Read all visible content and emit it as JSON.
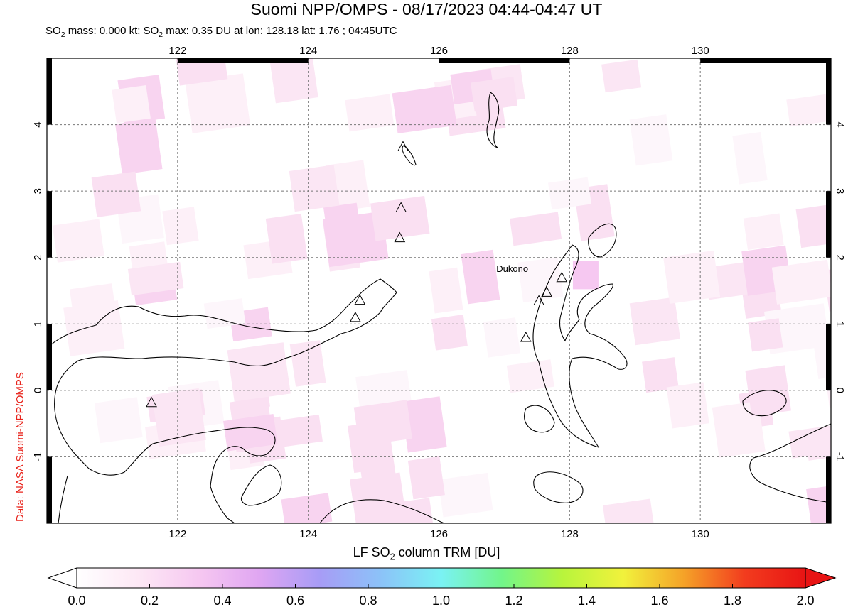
{
  "title": "Suomi NPP/OMPS - 08/17/2023 04:44-04:47 UT",
  "subtitle": {
    "mass_label": "SO",
    "mass_sub": "2",
    "mass_text": " mass: 0.000 kt; SO",
    "max_sub": "2",
    "max_text": " max: 0.35 DU at lon: 128.18 lat: 1.76 ; 04:45UTC"
  },
  "credit": "Data: NASA Suomi-NPP/OMPS",
  "map": {
    "lon_range": [
      120,
      132
    ],
    "lat_range": [
      -2,
      5
    ],
    "lon_ticks": [
      122,
      124,
      126,
      128,
      130
    ],
    "lat_ticks": [
      -1,
      0,
      1,
      2,
      3,
      4
    ],
    "volcano_label": "Dukono",
    "volcanoes": [
      {
        "lon": 125.45,
        "lat": 3.67
      },
      {
        "lon": 125.42,
        "lat": 2.75
      },
      {
        "lon": 125.4,
        "lat": 2.3
      },
      {
        "lon": 124.79,
        "lat": 1.36
      },
      {
        "lon": 124.72,
        "lat": 1.1
      },
      {
        "lon": 127.88,
        "lat": 1.7
      },
      {
        "lon": 127.65,
        "lat": 1.48
      },
      {
        "lon": 127.53,
        "lat": 1.35
      },
      {
        "lon": 127.33,
        "lat": 0.8
      },
      {
        "lon": 121.6,
        "lat": -0.18
      }
    ]
  },
  "colorbar": {
    "title_pre": "LF SO",
    "title_sub": "2",
    "title_post": " column TRM [DU]",
    "ticks": [
      "0.0",
      "0.2",
      "0.4",
      "0.6",
      "0.8",
      "1.0",
      "1.2",
      "1.4",
      "1.6",
      "1.8",
      "2.0"
    ],
    "colors": [
      "#ffffff",
      "#fde8f5",
      "#f6c8f1",
      "#e0a6f2",
      "#a79cf6",
      "#8cc2f8",
      "#7af2f4",
      "#72f58a",
      "#b8f43c",
      "#f1f23c",
      "#f5a228",
      "#f23c1e",
      "#e81414"
    ]
  }
}
